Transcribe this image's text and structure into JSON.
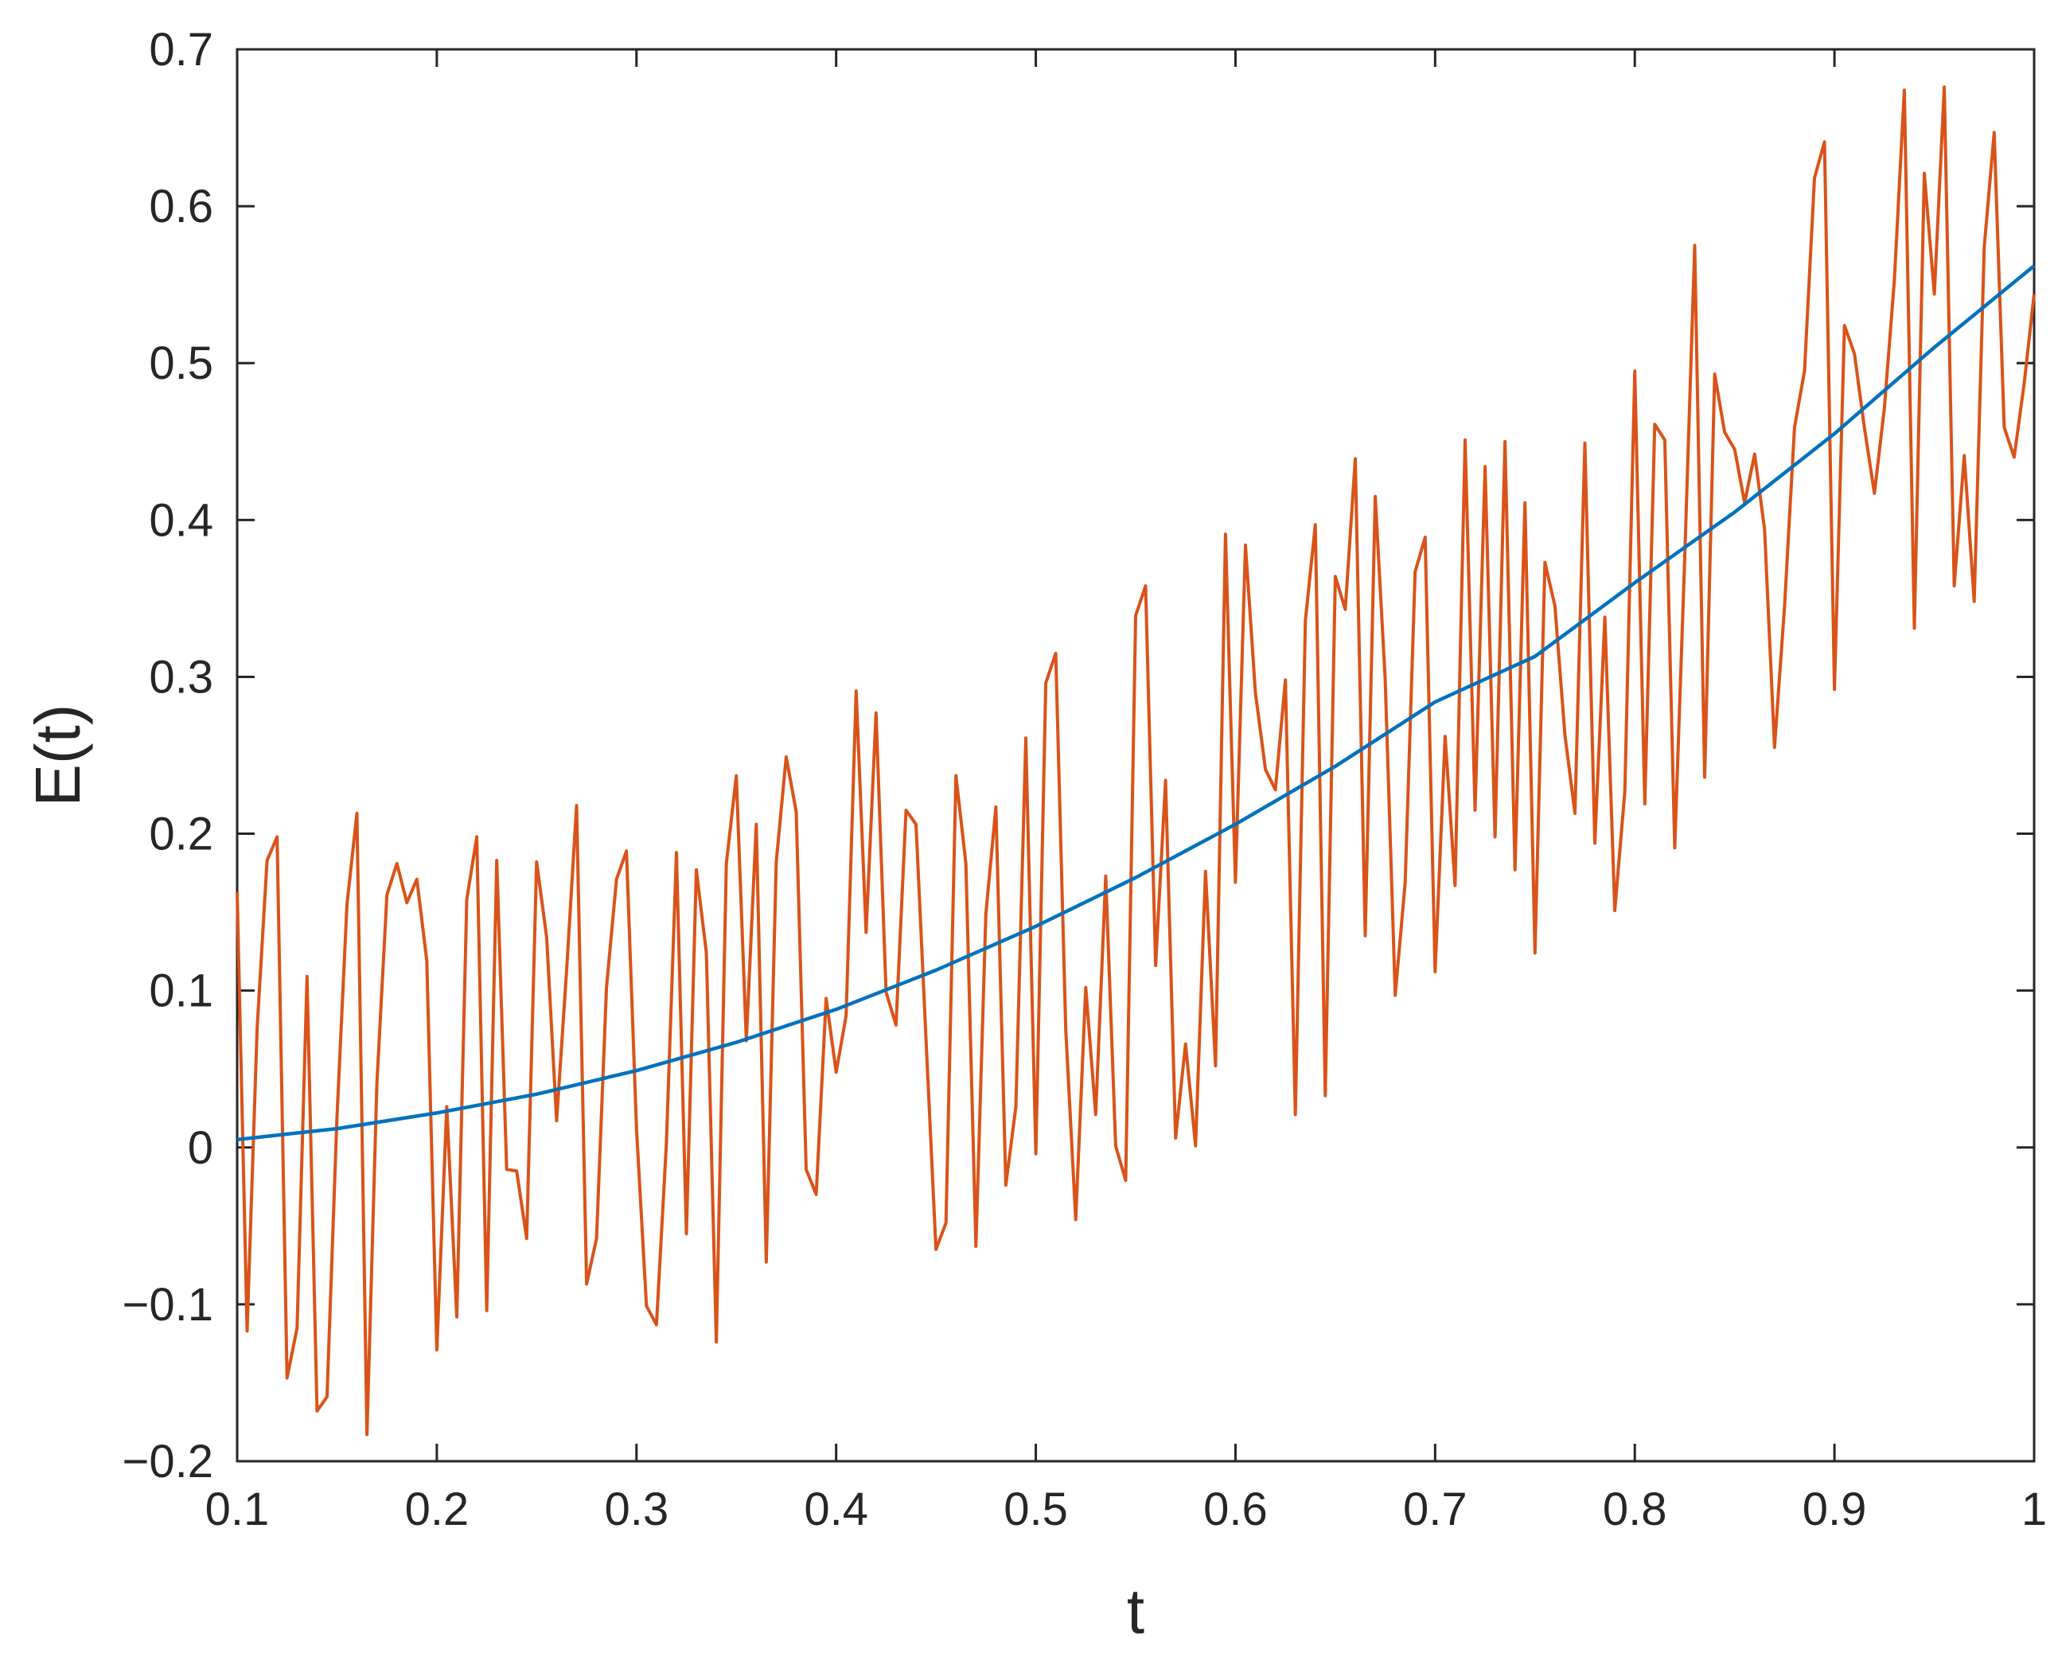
{
  "chart_data": {
    "type": "line",
    "title": "",
    "xlabel": "t",
    "ylabel": "E(t)",
    "xlim": [
      0.1,
      1.0
    ],
    "ylim": [
      -0.2,
      0.7
    ],
    "xticks": [
      "0.1",
      "0.2",
      "0.3",
      "0.4",
      "0.5",
      "0.6",
      "0.7",
      "0.8",
      "0.9",
      "1"
    ],
    "yticks": [
      "-0.2",
      "-0.1",
      "0",
      "0.1",
      "0.2",
      "0.3",
      "0.4",
      "0.5",
      "0.6",
      "0.7"
    ],
    "grid": false,
    "box": true,
    "series": [
      {
        "color": "#0072BD",
        "x": [
          0.1,
          0.15,
          0.2,
          0.25,
          0.3,
          0.35,
          0.4,
          0.45,
          0.5,
          0.55,
          0.6,
          0.65,
          0.7,
          0.75,
          0.8,
          0.85,
          0.9,
          0.95,
          1.0
        ],
        "y": [
          0.005,
          0.012,
          0.022,
          0.034,
          0.049,
          0.067,
          0.088,
          0.113,
          0.141,
          0.172,
          0.206,
          0.243,
          0.284,
          0.313,
          0.36,
          0.405,
          0.455,
          0.51,
          0.562
        ]
      },
      {
        "color": "#D95319",
        "x": [
          0.1,
          0.105,
          0.11,
          0.115,
          0.12,
          0.125,
          0.13,
          0.135,
          0.14,
          0.145,
          0.15,
          0.155,
          0.16,
          0.165,
          0.17,
          0.175,
          0.18,
          0.185,
          0.19,
          0.195,
          0.2,
          0.205,
          0.21,
          0.215,
          0.22,
          0.225,
          0.23,
          0.235,
          0.24,
          0.245,
          0.25,
          0.255,
          0.26,
          0.265,
          0.27,
          0.275,
          0.28,
          0.285,
          0.29,
          0.295,
          0.3,
          0.305,
          0.31,
          0.315,
          0.32,
          0.325,
          0.33,
          0.335,
          0.34,
          0.345,
          0.35,
          0.355,
          0.36,
          0.365,
          0.37,
          0.375,
          0.38,
          0.385,
          0.39,
          0.395,
          0.4,
          0.405,
          0.41,
          0.415,
          0.42,
          0.425,
          0.43,
          0.435,
          0.44,
          0.445,
          0.45,
          0.455,
          0.46,
          0.465,
          0.47,
          0.475,
          0.48,
          0.485,
          0.49,
          0.495,
          0.5,
          0.505,
          0.51,
          0.515,
          0.52,
          0.525,
          0.53,
          0.535,
          0.54,
          0.545,
          0.55,
          0.555,
          0.56,
          0.565,
          0.57,
          0.575,
          0.58,
          0.585,
          0.59,
          0.595,
          0.6,
          0.605,
          0.61,
          0.615,
          0.62,
          0.625,
          0.63,
          0.635,
          0.64,
          0.645,
          0.65,
          0.655,
          0.66,
          0.665,
          0.67,
          0.675,
          0.68,
          0.685,
          0.69,
          0.695,
          0.7,
          0.705,
          0.71,
          0.715,
          0.72,
          0.725,
          0.73,
          0.735,
          0.74,
          0.745,
          0.75,
          0.755,
          0.76,
          0.765,
          0.77,
          0.775,
          0.78,
          0.785,
          0.79,
          0.795,
          0.8,
          0.805,
          0.81,
          0.815,
          0.82,
          0.825,
          0.83,
          0.835,
          0.84,
          0.845,
          0.85,
          0.855,
          0.86,
          0.865,
          0.87,
          0.875,
          0.88,
          0.885,
          0.89,
          0.895,
          0.9,
          0.905,
          0.91,
          0.915,
          0.92,
          0.925,
          0.93,
          0.935,
          0.94,
          0.945,
          0.95,
          0.955,
          0.96,
          0.965,
          0.97,
          0.975,
          0.98,
          0.985,
          0.99,
          0.995,
          1.0
        ],
        "y": [
          0.163,
          -0.117,
          0.076,
          0.183,
          0.198,
          -0.147,
          -0.115,
          0.109,
          -0.168,
          -0.159,
          0.019,
          0.155,
          0.213,
          -0.183,
          0.041,
          0.161,
          0.181,
          0.156,
          0.171,
          0.119,
          -0.129,
          0.026,
          -0.108,
          0.158,
          0.198,
          -0.104,
          0.183,
          -0.014,
          -0.015,
          -0.058,
          0.182,
          0.134,
          0.017,
          0.113,
          0.218,
          -0.087,
          -0.058,
          0.102,
          0.171,
          0.189,
          0.012,
          -0.101,
          -0.113,
          0.003,
          0.188,
          -0.055,
          0.177,
          0.124,
          -0.124,
          0.181,
          0.237,
          0.068,
          0.206,
          -0.073,
          0.182,
          0.249,
          0.214,
          -0.014,
          -0.03,
          0.095,
          0.048,
          0.084,
          0.291,
          0.137,
          0.277,
          0.099,
          0.078,
          0.215,
          0.206,
          0.069,
          -0.065,
          -0.048,
          0.237,
          0.181,
          -0.063,
          0.149,
          0.217,
          -0.024,
          0.026,
          0.261,
          -0.004,
          0.296,
          0.315,
          0.075,
          -0.046,
          0.102,
          0.021,
          0.173,
          0.001,
          -0.021,
          0.339,
          0.358,
          0.116,
          0.234,
          0.006,
          0.066,
          0.001,
          0.176,
          0.052,
          0.391,
          0.169,
          0.384,
          0.29,
          0.241,
          0.228,
          0.298,
          0.021,
          0.336,
          0.397,
          0.033,
          0.364,
          0.343,
          0.439,
          0.135,
          0.415,
          0.298,
          0.097,
          0.169,
          0.367,
          0.389,
          0.112,
          0.262,
          0.167,
          0.451,
          0.215,
          0.434,
          0.198,
          0.45,
          0.177,
          0.411,
          0.124,
          0.373,
          0.345,
          0.263,
          0.213,
          0.449,
          0.194,
          0.338,
          0.151,
          0.227,
          0.495,
          0.219,
          0.461,
          0.451,
          0.191,
          0.375,
          0.575,
          0.236,
          0.493,
          0.456,
          0.445,
          0.411,
          0.442,
          0.394,
          0.255,
          0.345,
          0.459,
          0.495,
          0.618,
          0.641,
          0.292,
          0.524,
          0.506,
          0.459,
          0.417,
          0.471,
          0.553,
          0.674,
          0.331,
          0.621,
          0.544,
          0.676,
          0.358,
          0.441,
          0.348,
          0.574,
          0.647,
          0.459,
          0.44,
          0.487,
          0.544
        ]
      }
    ]
  }
}
